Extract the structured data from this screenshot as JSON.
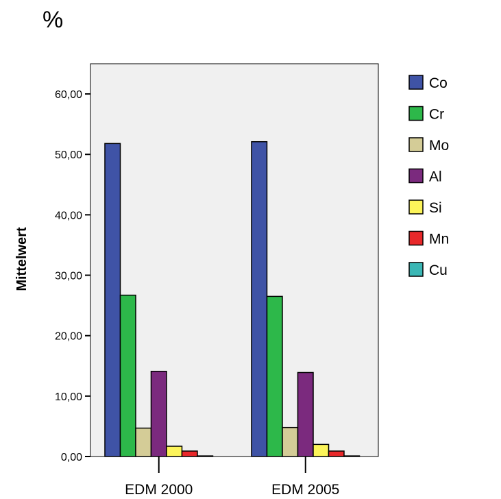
{
  "page": {
    "unit_label": "%"
  },
  "chart_data": {
    "type": "bar",
    "title": "",
    "xlabel": "",
    "ylabel": "Mittelwert",
    "categories": [
      "EDM 2000",
      "EDM 2005"
    ],
    "ylim": [
      0,
      65
    ],
    "yticks": [
      0,
      10,
      20,
      30,
      40,
      50,
      60
    ],
    "ytick_labels": [
      "0,00",
      "10,00",
      "20,00",
      "30,00",
      "40,00",
      "50,00",
      "60,00"
    ],
    "grid": false,
    "legend_position": "right",
    "series": [
      {
        "name": "Co",
        "color": "#3f53a6",
        "values": [
          51.8,
          52.1
        ]
      },
      {
        "name": "Cr",
        "color": "#2db84a",
        "values": [
          26.7,
          26.5
        ]
      },
      {
        "name": "Mo",
        "color": "#d4cc97",
        "values": [
          4.7,
          4.8
        ]
      },
      {
        "name": "Al",
        "color": "#7b2a7e",
        "values": [
          14.1,
          13.9
        ]
      },
      {
        "name": "Si",
        "color": "#fcf45a",
        "values": [
          1.7,
          2.0
        ]
      },
      {
        "name": "Mn",
        "color": "#e8282a",
        "values": [
          0.9,
          0.9
        ]
      },
      {
        "name": "Cu",
        "color": "#3bb7b5",
        "values": [
          0.1,
          0.1
        ]
      }
    ]
  }
}
